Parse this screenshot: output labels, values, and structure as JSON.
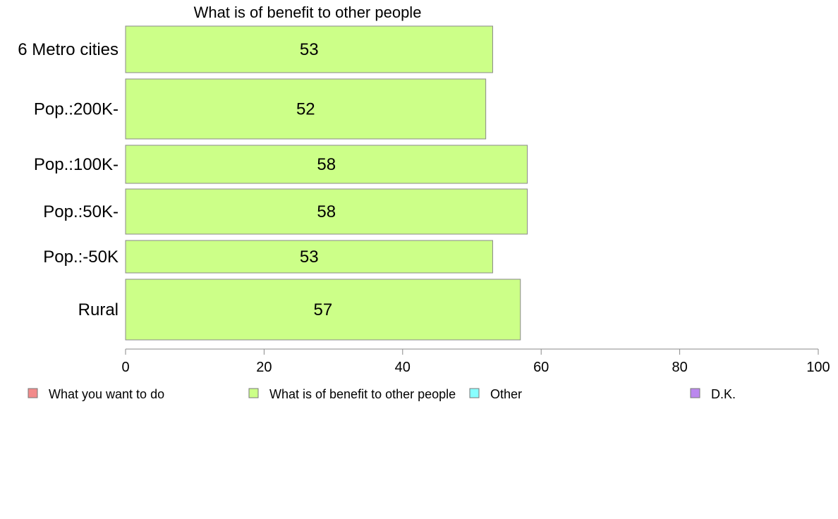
{
  "chart_data": {
    "type": "bar",
    "orientation": "horizontal",
    "title": "What is of benefit to other people",
    "categories": [
      "6 Metro cities",
      "Pop.:200K-",
      "Pop.:100K-",
      "Pop.:50K-",
      "Pop.:-50K",
      "Rural"
    ],
    "series": [
      {
        "name": "What is of benefit to other people",
        "values": [
          53,
          52,
          58,
          58,
          53,
          57
        ]
      }
    ],
    "xlim": [
      0,
      100
    ],
    "xticks": [
      0,
      20,
      40,
      60,
      80,
      100
    ],
    "xlabel": "",
    "ylabel": "",
    "grid": false,
    "legend_position": "bottom",
    "legend": [
      {
        "name": "What you want to do",
        "color": "#f28b8b"
      },
      {
        "name": "What is of benefit to other people",
        "color": "#ccff88"
      },
      {
        "name": "Other",
        "color": "#88ffff"
      },
      {
        "name": "D.K.",
        "color": "#bb88ee"
      }
    ],
    "bar_color": "#ccff88",
    "bar_edge_color": "#8a8a8a"
  }
}
